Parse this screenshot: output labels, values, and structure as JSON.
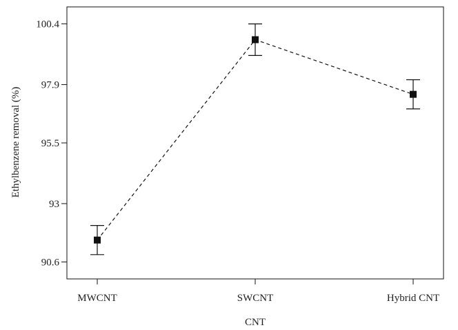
{
  "chart_data": {
    "type": "line",
    "title": "",
    "xlabel": "CNT",
    "ylabel": "Ethylbenzene removal (%)",
    "categories": [
      "MWCNT",
      "SWCNT",
      "Hybrid CNT"
    ],
    "series": [
      {
        "values": [
          91.5,
          99.75,
          97.5
        ],
        "error_low": [
          90.9,
          99.1,
          96.9
        ],
        "error_high": [
          92.1,
          100.4,
          98.1
        ],
        "style": "dashed line with square markers and error bars",
        "color": "#111111"
      }
    ],
    "yticks": [
      90.6,
      93,
      95.5,
      97.9,
      100.4
    ],
    "ytick_labels": [
      "90.6",
      "93",
      "95.5",
      "97.9",
      "100.4"
    ],
    "ylim": [
      89.9,
      101.1
    ],
    "grid": false,
    "legend": "none"
  }
}
